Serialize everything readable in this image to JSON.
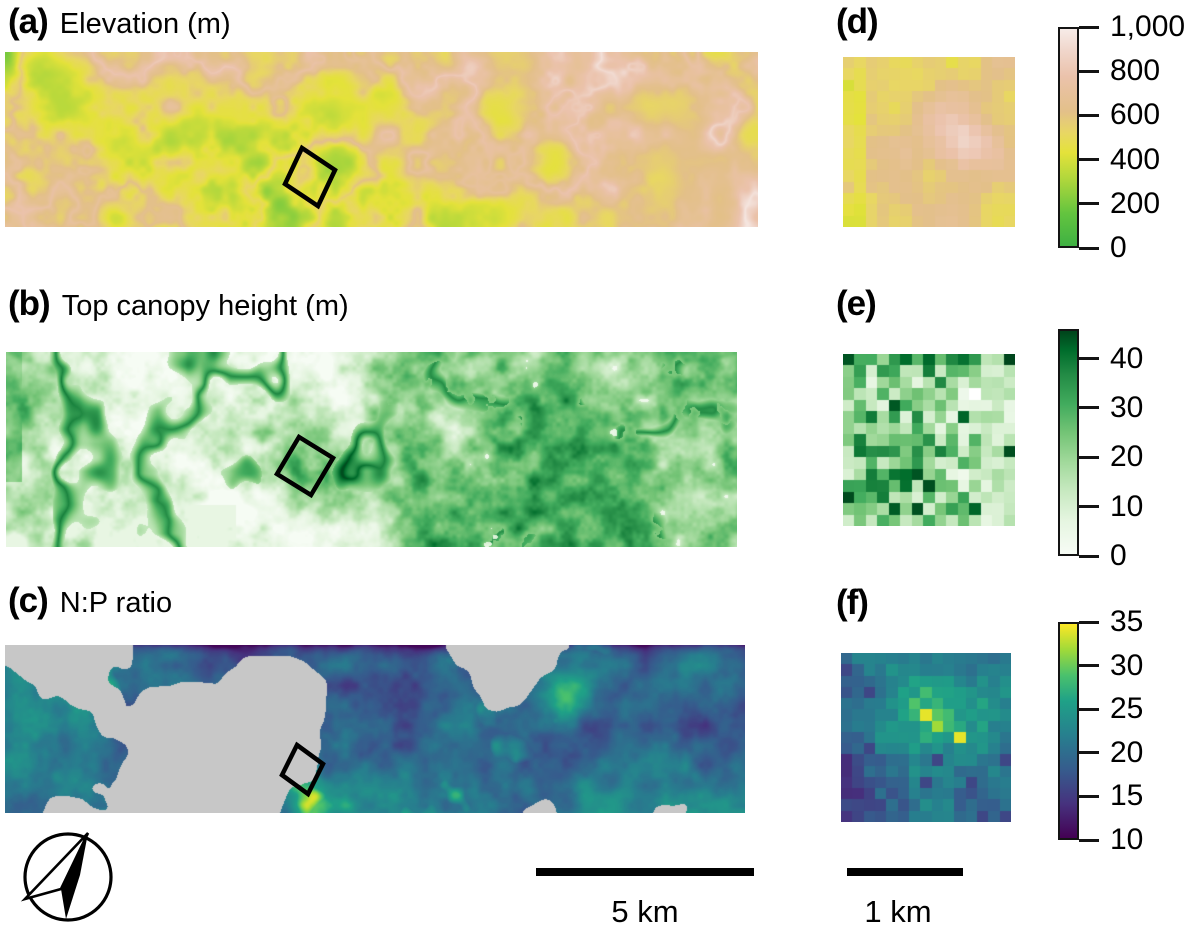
{
  "panels": {
    "a": {
      "label": "(a)",
      "title": "Elevation (m)"
    },
    "b": {
      "label": "(b)",
      "title": "Top canopy height (m)"
    },
    "c": {
      "label": "(c)",
      "title": "N:P ratio"
    },
    "d": {
      "label": "(d)"
    },
    "e": {
      "label": "(e)"
    },
    "f": {
      "label": "(f)"
    }
  },
  "scale_bars": {
    "main": {
      "label": "5 km"
    },
    "inset": {
      "label": "1 km"
    }
  },
  "compass": {
    "type": "north-arrow"
  },
  "colors": {
    "background": "#FFFFFF",
    "mask_gray": "#C7C7C7",
    "ink": "#141414"
  },
  "legends": {
    "elevation": {
      "units": "m",
      "min": 0,
      "max": 1000,
      "bar_max": 1000,
      "tick_labels": [
        "1,000",
        "800",
        "600",
        "400",
        "200",
        "0"
      ],
      "tick_values": [
        1000,
        800,
        600,
        400,
        200,
        0
      ],
      "stops": [
        {
          "v": 0,
          "c": "#3FB143"
        },
        {
          "v": 150,
          "c": "#63C43F"
        },
        {
          "v": 300,
          "c": "#ACD63C"
        },
        {
          "v": 430,
          "c": "#E4E23A"
        },
        {
          "v": 520,
          "c": "#E8D763"
        },
        {
          "v": 620,
          "c": "#E3C089"
        },
        {
          "v": 780,
          "c": "#EBC2AB"
        },
        {
          "v": 900,
          "c": "#F0D6CB"
        },
        {
          "v": 1000,
          "c": "#F7ECE8"
        }
      ]
    },
    "canopy": {
      "units": "m",
      "min": 0,
      "max": 46,
      "bar_max": 46,
      "tick_labels": [
        "40",
        "30",
        "20",
        "10",
        "0"
      ],
      "tick_values": [
        40,
        30,
        20,
        10,
        0
      ],
      "stops": [
        {
          "v": 0,
          "c": "#F7FCF5"
        },
        {
          "v": 7,
          "c": "#E5F5E0"
        },
        {
          "v": 13,
          "c": "#C7E9C0"
        },
        {
          "v": 19,
          "c": "#A1D99B"
        },
        {
          "v": 25,
          "c": "#74C476"
        },
        {
          "v": 31,
          "c": "#41AB5D"
        },
        {
          "v": 37,
          "c": "#238B45"
        },
        {
          "v": 42,
          "c": "#006D2C"
        },
        {
          "v": 46,
          "c": "#00441B"
        }
      ]
    },
    "np_ratio": {
      "units": "",
      "min": 10,
      "max": 35,
      "bar_max": 35,
      "tick_labels": [
        "35",
        "30",
        "25",
        "20",
        "15",
        "10"
      ],
      "tick_values": [
        35,
        30,
        25,
        20,
        15,
        10
      ],
      "stops": [
        {
          "v": 10,
          "c": "#440154"
        },
        {
          "v": 14,
          "c": "#46327E"
        },
        {
          "v": 18,
          "c": "#365C8D"
        },
        {
          "v": 22,
          "c": "#277F8E"
        },
        {
          "v": 26,
          "c": "#1FA187"
        },
        {
          "v": 29,
          "c": "#4AC16D"
        },
        {
          "v": 32,
          "c": "#A0DA39"
        },
        {
          "v": 35,
          "c": "#FDE725"
        }
      ]
    }
  }
}
